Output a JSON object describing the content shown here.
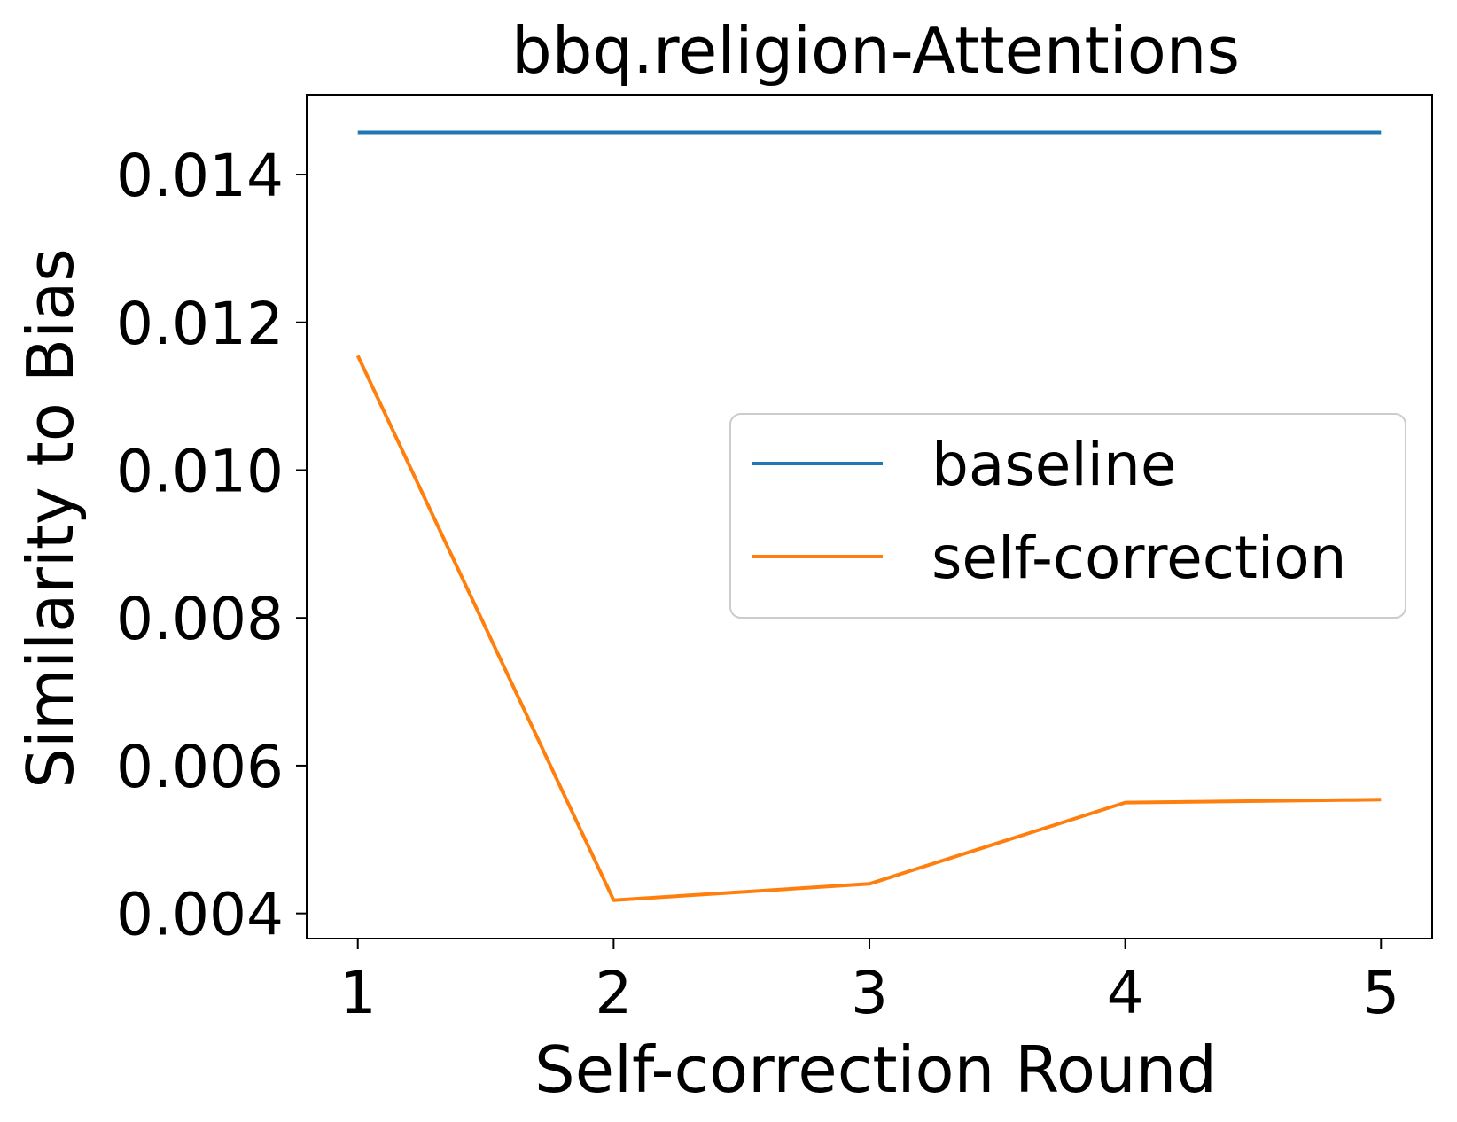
{
  "chart_data": {
    "type": "line",
    "title": "bbq.religion-Attentions",
    "xlabel": "Self-correction Round",
    "ylabel": "Similarity to Bias",
    "x": [
      1,
      2,
      3,
      4,
      5
    ],
    "x_tick_labels": [
      "1",
      "2",
      "3",
      "4",
      "5"
    ],
    "y_ticks": [
      0.004,
      0.006,
      0.008,
      0.01,
      0.012,
      0.014
    ],
    "y_tick_labels": [
      "0.004",
      "0.006",
      "0.008",
      "0.010",
      "0.012",
      "0.014"
    ],
    "xlim": [
      0.8,
      5.2
    ],
    "ylim": [
      0.00366,
      0.01508
    ],
    "grid": false,
    "legend_position": "center-right",
    "series": [
      {
        "name": "baseline",
        "color": "#1f77b4",
        "values": [
          0.01457,
          0.01457,
          0.01457,
          0.01457,
          0.01457
        ]
      },
      {
        "name": "self-correction",
        "color": "#ff7f0e",
        "values": [
          0.01155,
          0.00418,
          0.0044,
          0.0055,
          0.00554
        ]
      }
    ]
  }
}
